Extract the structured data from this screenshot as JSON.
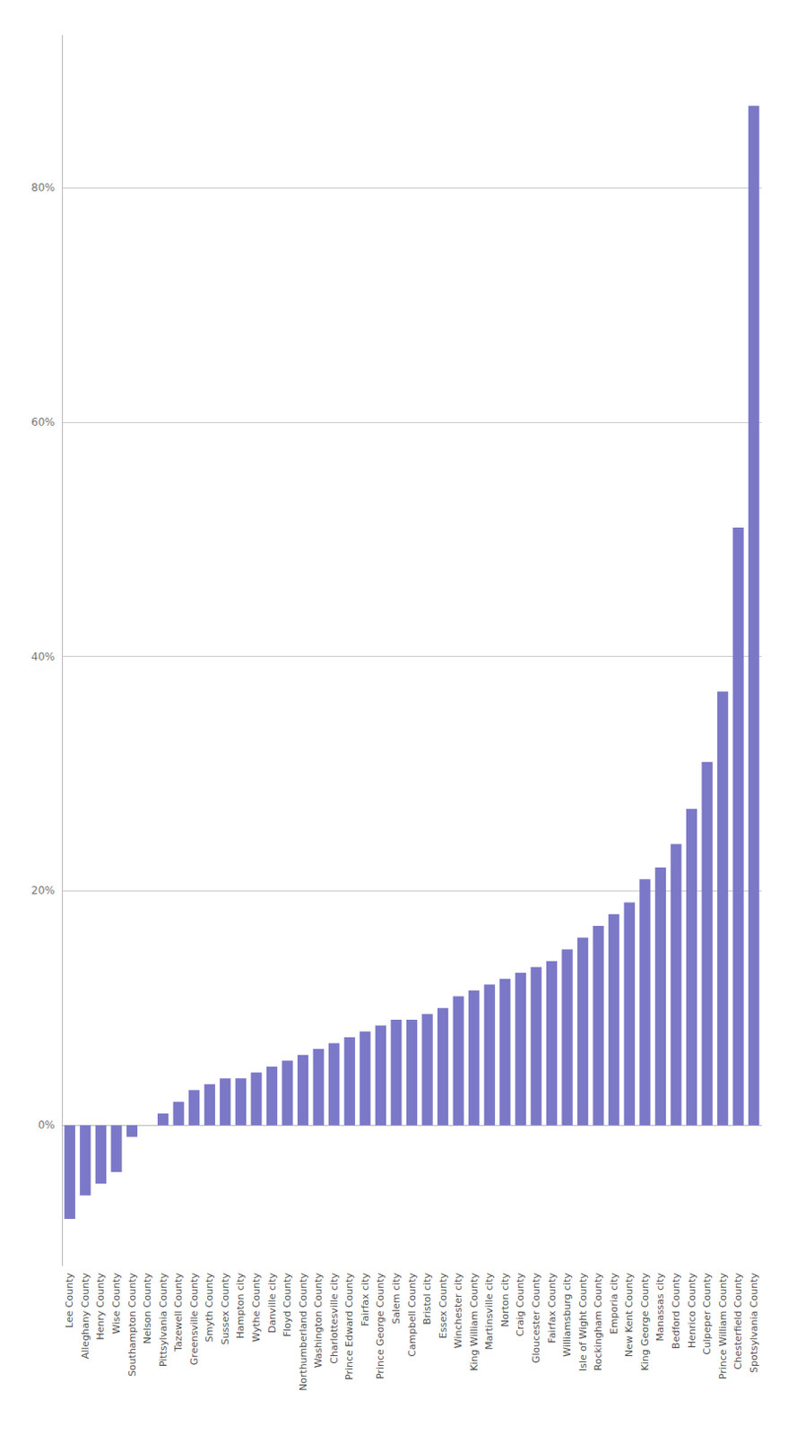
{
  "chart_data": {
    "type": "bar",
    "categories": [
      "Lee County",
      "Alleghany County",
      "Henry County",
      "Wise County",
      "Southampton County",
      "Nelson County",
      "Pittsylvania County",
      "Tazewell County",
      "Greensville County",
      "Smyth County",
      "Sussex County",
      "Hampton city",
      "Wythe County",
      "Danville city",
      "Floyd County",
      "Northumberland County",
      "Washington County",
      "Charlottesville city",
      "Prince Edward County",
      "Fairfax city",
      "Prince George County",
      "Salem city",
      "Campbell County",
      "Bristol city",
      "Essex County",
      "Winchester city",
      "King William County",
      "Martinsville city",
      "Norton city",
      "Craig County",
      "Gloucester County",
      "Fairfax County",
      "Williamsburg city",
      "Isle of Wight County",
      "Rockingham County",
      "Emporia city",
      "New Kent County",
      "King George County",
      "Manassas city",
      "Bedford County",
      "Henrico County",
      "Culpeper County",
      "Prince William County",
      "Chesterfield County",
      "Spotsylvania County"
    ],
    "values": [
      -8,
      -6,
      -5,
      -4,
      -1,
      0,
      1,
      2,
      3,
      3.5,
      4,
      4,
      4.5,
      5,
      5.5,
      6,
      6.5,
      7,
      7.5,
      8,
      8.5,
      9,
      9,
      9.5,
      10,
      11,
      11.5,
      12,
      12.5,
      13,
      13.5,
      14,
      15,
      16,
      17,
      18,
      19,
      21,
      22,
      24,
      27,
      31,
      37,
      51,
      87
    ],
    "color": "#7b78c8",
    "ylim": [
      -12,
      93
    ],
    "yticks": [
      {
        "value": 0,
        "label": "0%"
      },
      {
        "value": 20,
        "label": "20%"
      },
      {
        "value": 40,
        "label": "40%"
      },
      {
        "value": 60,
        "label": "60%"
      },
      {
        "value": 80,
        "label": "80%"
      }
    ],
    "grid": true
  }
}
